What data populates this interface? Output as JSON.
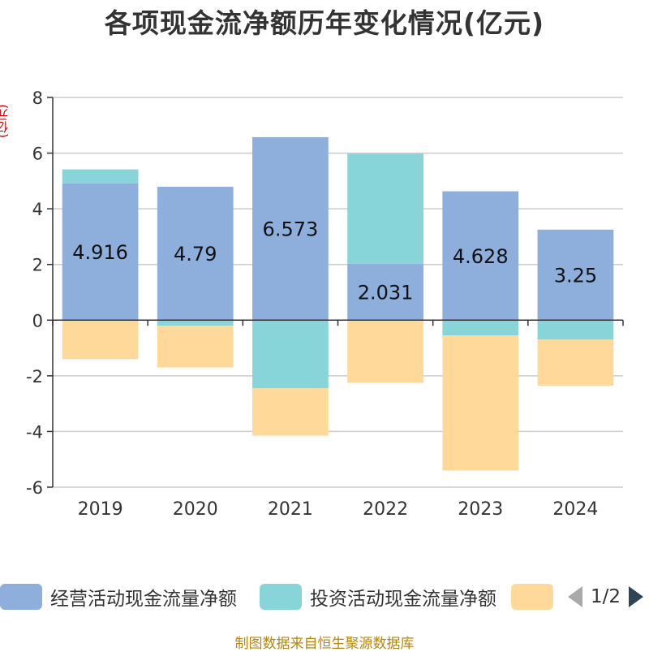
{
  "title": "各项现金流净额历年变化情况(亿元)",
  "unit_label": "(亿元)",
  "source": "制图数据来自恒生聚源数据库",
  "pager": {
    "text": "1/2"
  },
  "legend": [
    {
      "name": "经营活动现金流量净额",
      "color": "#8eaedb"
    },
    {
      "name": "投资活动现金流量净额",
      "color": "#87d5d8"
    },
    {
      "name": "",
      "color": "#fed99a"
    }
  ],
  "chart_data": {
    "type": "bar",
    "stacked": true,
    "categories": [
      "2019",
      "2020",
      "2021",
      "2022",
      "2023",
      "2024"
    ],
    "ylim": [
      -6,
      8
    ],
    "yticks": [
      -6,
      -4,
      -2,
      0,
      2,
      4,
      6,
      8
    ],
    "grid": true,
    "legend_position": "bottom",
    "series": [
      {
        "name": "经营活动现金流量净额",
        "color": "#8eaedb",
        "values": [
          4.916,
          4.79,
          6.573,
          2.031,
          4.628,
          3.25
        ],
        "show_labels": true
      },
      {
        "name": "投资活动现金流量净额",
        "color": "#87d5d8",
        "values": [
          0.5,
          -0.2,
          -2.45,
          3.95,
          -0.55,
          -0.7
        ],
        "show_labels": false
      },
      {
        "name": "",
        "color": "#fed99a",
        "values": [
          -1.4,
          -1.5,
          -1.7,
          -2.25,
          -4.85,
          -1.65
        ],
        "show_labels": false
      }
    ]
  }
}
